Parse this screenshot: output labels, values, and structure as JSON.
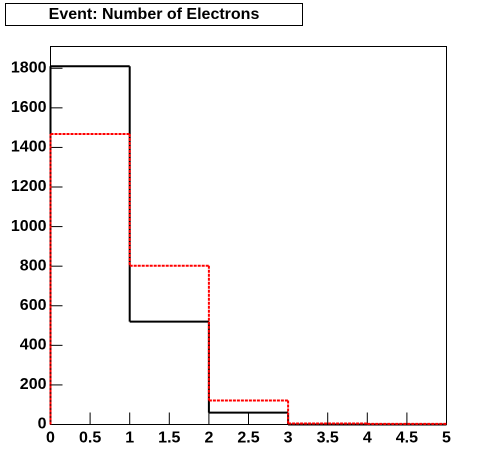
{
  "chart_data": {
    "type": "histogram",
    "title": "Event: Number of Electrons",
    "bins": [
      0,
      1,
      2,
      3,
      4,
      5
    ],
    "series": [
      {
        "color": "#000000",
        "dashed": false,
        "values": [
          1810,
          520,
          60,
          0,
          0
        ]
      },
      {
        "color": "#ff0000",
        "dashed": true,
        "values": [
          1468,
          802,
          121,
          5,
          3
        ]
      }
    ],
    "xlim": [
      0,
      5
    ],
    "xticks": [
      0,
      0.5,
      1,
      1.5,
      2,
      2.5,
      3,
      3.5,
      4,
      4.5,
      5
    ],
    "ylim": [
      0,
      1910
    ],
    "yticks": [
      0,
      200,
      400,
      600,
      800,
      1000,
      1200,
      1400,
      1600,
      1800
    ]
  }
}
